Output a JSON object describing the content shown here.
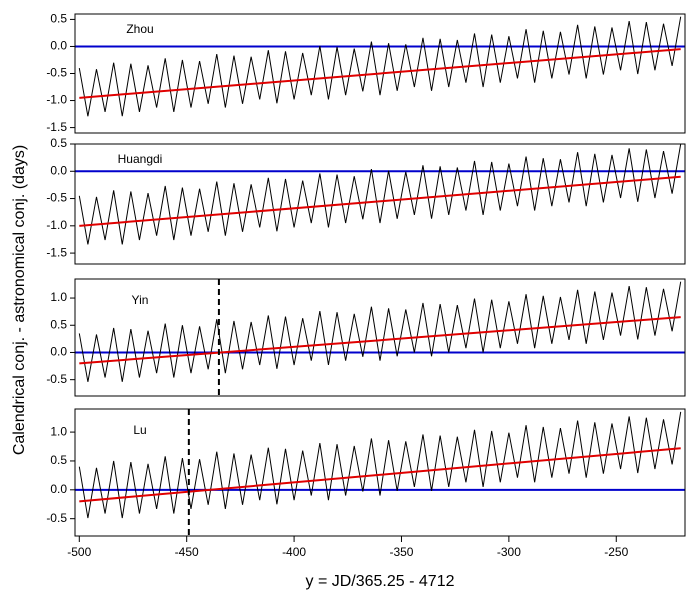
{
  "ylabel": "Calendrical conj. - astronomical conj. (days)",
  "xlabel": "y = JD/365.25 - 4712",
  "chart_data": [
    {
      "type": "line",
      "label": "Zhou",
      "x": [
        -500,
        -496,
        -492,
        -488,
        -484,
        -480,
        -476,
        -472,
        -468,
        -464,
        -460,
        -456,
        -452,
        -448,
        -444,
        -440,
        -436,
        -432,
        -428,
        -424,
        -420,
        -416,
        -412,
        -408,
        -404,
        -400,
        -396,
        -392,
        -388,
        -384,
        -380,
        -376,
        -372,
        -368,
        -364,
        -360,
        -356,
        -352,
        -348,
        -344,
        -340,
        -336,
        -332,
        -328,
        -324,
        -320,
        -316,
        -312,
        -308,
        -304,
        -300,
        -296,
        -292,
        -288,
        -284,
        -280,
        -276,
        -272,
        -268,
        -264,
        -260,
        -256,
        -252,
        -248,
        -244,
        -240,
        -236,
        -232,
        -228,
        -224,
        -220
      ],
      "series": [
        {
          "color": "#000000",
          "values": [
            -0.4,
            -1.29,
            -0.42,
            -1.21,
            -0.3,
            -1.29,
            -0.32,
            -1.21,
            -0.35,
            -1.13,
            -0.22,
            -1.21,
            -0.25,
            -1.13,
            -0.27,
            -1.06,
            -0.14,
            -1.13,
            -0.17,
            -1.06,
            -0.19,
            -0.98,
            -0.07,
            -1.05,
            -0.09,
            -0.98,
            -0.12,
            -0.9,
            0.01,
            -0.98,
            -0.01,
            -0.9,
            -0.04,
            -0.83,
            0.09,
            -0.9,
            0.06,
            -0.82,
            0.04,
            -0.75,
            0.16,
            -0.82,
            0.14,
            -0.75,
            0.12,
            -0.67,
            0.24,
            -0.75,
            0.22,
            -0.67,
            0.19,
            -0.59,
            0.32,
            -0.67,
            0.29,
            -0.59,
            0.27,
            -0.52,
            0.4,
            -0.59,
            0.37,
            -0.52,
            0.35,
            -0.44,
            0.47,
            -0.51,
            0.45,
            -0.44,
            0.42,
            -0.36,
            0.55
          ]
        },
        {
          "color": "#e00000",
          "x": [
            -500,
            -220
          ],
          "values": [
            -0.95,
            -0.05
          ]
        }
      ],
      "hline": 0,
      "hline_color": "#0000cc",
      "xlim": [
        -502,
        -218
      ],
      "ylim": [
        -1.6,
        0.6
      ],
      "yticks": [
        {
          "value": 0.5,
          "label": "0.5"
        },
        {
          "value": 0,
          "label": "0.0"
        },
        {
          "value": -0.5,
          "label": "-0.5"
        },
        {
          "value": -1,
          "label": "-1.0"
        },
        {
          "value": -1.5,
          "label": "-1.5"
        }
      ]
    },
    {
      "type": "line",
      "label": "Huangdi",
      "x": [
        -500,
        -496,
        -492,
        -488,
        -484,
        -480,
        -476,
        -472,
        -468,
        -464,
        -460,
        -456,
        -452,
        -448,
        -444,
        -440,
        -436,
        -432,
        -428,
        -424,
        -420,
        -416,
        -412,
        -408,
        -404,
        -400,
        -396,
        -392,
        -388,
        -384,
        -380,
        -376,
        -372,
        -368,
        -364,
        -360,
        -356,
        -352,
        -348,
        -344,
        -340,
        -336,
        -332,
        -328,
        -324,
        -320,
        -316,
        -312,
        -308,
        -304,
        -300,
        -296,
        -292,
        -288,
        -284,
        -280,
        -276,
        -272,
        -268,
        -264,
        -260,
        -256,
        -252,
        -248,
        -244,
        -240,
        -236,
        -232,
        -228,
        -224,
        -220
      ],
      "series": [
        {
          "color": "#000000",
          "values": [
            -0.45,
            -1.34,
            -0.47,
            -1.26,
            -0.35,
            -1.34,
            -0.37,
            -1.26,
            -0.4,
            -1.18,
            -0.27,
            -1.26,
            -0.3,
            -1.18,
            -0.32,
            -1.11,
            -0.19,
            -1.18,
            -0.22,
            -1.11,
            -0.24,
            -1.03,
            -0.12,
            -1.1,
            -0.14,
            -1.03,
            -0.17,
            -0.95,
            -0.04,
            -1.03,
            -0.06,
            -0.95,
            -0.09,
            -0.88,
            0.04,
            -0.95,
            0.01,
            -0.87,
            -0.01,
            -0.8,
            0.11,
            -0.87,
            0.09,
            -0.8,
            0.07,
            -0.72,
            0.19,
            -0.8,
            0.17,
            -0.72,
            0.14,
            -0.64,
            0.27,
            -0.72,
            0.24,
            -0.64,
            0.22,
            -0.57,
            0.35,
            -0.64,
            0.32,
            -0.57,
            0.3,
            -0.49,
            0.42,
            -0.56,
            0.4,
            -0.49,
            0.37,
            -0.41,
            0.5
          ]
        },
        {
          "color": "#e00000",
          "x": [
            -500,
            -220
          ],
          "values": [
            -1.0,
            -0.1
          ]
        }
      ],
      "hline": 0,
      "hline_color": "#0000cc",
      "xlim": [
        -502,
        -218
      ],
      "ylim": [
        -1.7,
        0.5
      ],
      "yticks": [
        {
          "value": 0.5,
          "label": "0.5"
        },
        {
          "value": 0,
          "label": "0.0"
        },
        {
          "value": -0.5,
          "label": "-0.5"
        },
        {
          "value": -1,
          "label": "-1.0"
        },
        {
          "value": -1.5,
          "label": "-1.5"
        }
      ]
    },
    {
      "type": "line",
      "label": "Yin",
      "x": [
        -500,
        -496,
        -492,
        -488,
        -484,
        -480,
        -476,
        -472,
        -468,
        -464,
        -460,
        -456,
        -452,
        -448,
        -444,
        -440,
        -436,
        -432,
        -428,
        -424,
        -420,
        -416,
        -412,
        -408,
        -404,
        -400,
        -396,
        -392,
        -388,
        -384,
        -380,
        -376,
        -372,
        -368,
        -364,
        -360,
        -356,
        -352,
        -348,
        -344,
        -340,
        -336,
        -332,
        -328,
        -324,
        -320,
        -316,
        -312,
        -308,
        -304,
        -300,
        -296,
        -292,
        -288,
        -284,
        -280,
        -276,
        -272,
        -268,
        -264,
        -260,
        -256,
        -252,
        -248,
        -244,
        -240,
        -236,
        -232,
        -228,
        -224,
        -220
      ],
      "series": [
        {
          "color": "#000000",
          "values": [
            0.35,
            -0.54,
            0.33,
            -0.46,
            0.45,
            -0.54,
            0.43,
            -0.46,
            0.4,
            -0.38,
            0.53,
            -0.46,
            0.5,
            -0.38,
            0.48,
            -0.31,
            0.61,
            -0.38,
            0.58,
            -0.31,
            0.56,
            -0.23,
            0.68,
            -0.3,
            0.66,
            -0.23,
            0.63,
            -0.15,
            0.76,
            -0.23,
            0.74,
            -0.15,
            0.71,
            -0.08,
            0.84,
            -0.15,
            0.81,
            -0.07,
            0.79,
            0.0,
            0.91,
            -0.07,
            0.89,
            0.0,
            0.87,
            0.08,
            0.99,
            0.0,
            0.97,
            0.08,
            0.94,
            0.16,
            1.07,
            0.08,
            1.04,
            0.16,
            1.02,
            0.23,
            1.15,
            0.16,
            1.12,
            0.23,
            1.1,
            0.31,
            1.22,
            0.24,
            1.2,
            0.31,
            1.17,
            0.39,
            1.3
          ]
        },
        {
          "color": "#e00000",
          "x": [
            -500,
            -220
          ],
          "values": [
            -0.2,
            0.65
          ]
        }
      ],
      "hline": 0,
      "hline_color": "#0000cc",
      "vline": -435,
      "xlim": [
        -502,
        -218
      ],
      "ylim": [
        -0.8,
        1.35
      ],
      "yticks": [
        {
          "value": 1,
          "label": "1.0"
        },
        {
          "value": 0.5,
          "label": "0.5"
        },
        {
          "value": 0,
          "label": "0.0"
        },
        {
          "value": -0.5,
          "label": "-0.5"
        }
      ]
    },
    {
      "type": "line",
      "label": "Lu",
      "x": [
        -500,
        -496,
        -492,
        -488,
        -484,
        -480,
        -476,
        -472,
        -468,
        -464,
        -460,
        -456,
        -452,
        -448,
        -444,
        -440,
        -436,
        -432,
        -428,
        -424,
        -420,
        -416,
        -412,
        -408,
        -404,
        -400,
        -396,
        -392,
        -388,
        -384,
        -380,
        -376,
        -372,
        -368,
        -364,
        -360,
        -356,
        -352,
        -348,
        -344,
        -340,
        -336,
        -332,
        -328,
        -324,
        -320,
        -316,
        -312,
        -308,
        -304,
        -300,
        -296,
        -292,
        -288,
        -284,
        -280,
        -276,
        -272,
        -268,
        -264,
        -260,
        -256,
        -252,
        -248,
        -244,
        -240,
        -236,
        -232,
        -228,
        -224,
        -220
      ],
      "series": [
        {
          "color": "#000000",
          "values": [
            0.4,
            -0.49,
            0.38,
            -0.41,
            0.5,
            -0.49,
            0.48,
            -0.41,
            0.45,
            -0.33,
            0.58,
            -0.41,
            0.55,
            -0.33,
            0.53,
            -0.26,
            0.66,
            -0.33,
            0.63,
            -0.26,
            0.61,
            -0.18,
            0.73,
            -0.25,
            0.71,
            -0.18,
            0.68,
            -0.1,
            0.81,
            -0.18,
            0.79,
            -0.1,
            0.76,
            -0.03,
            0.89,
            -0.1,
            0.86,
            -0.02,
            0.84,
            0.05,
            0.96,
            -0.02,
            0.94,
            0.05,
            0.92,
            0.13,
            1.04,
            0.05,
            1.02,
            0.13,
            0.99,
            0.21,
            1.12,
            0.13,
            1.09,
            0.21,
            1.07,
            0.28,
            1.2,
            0.21,
            1.17,
            0.28,
            1.15,
            0.36,
            1.27,
            0.29,
            1.25,
            0.36,
            1.22,
            0.44,
            1.35
          ]
        },
        {
          "color": "#e00000",
          "x": [
            -500,
            -220
          ],
          "values": [
            -0.2,
            0.72
          ]
        }
      ],
      "hline": 0,
      "hline_color": "#0000cc",
      "vline": -449,
      "xlim": [
        -502,
        -218
      ],
      "ylim": [
        -0.8,
        1.4
      ],
      "yticks": [
        {
          "value": 1,
          "label": "1.0"
        },
        {
          "value": 0.5,
          "label": "0.5"
        },
        {
          "value": 0,
          "label": "0.0"
        },
        {
          "value": -0.5,
          "label": "-0.5"
        }
      ],
      "xticks": [
        -500,
        -450,
        -400,
        -350,
        -300,
        -250
      ]
    }
  ]
}
